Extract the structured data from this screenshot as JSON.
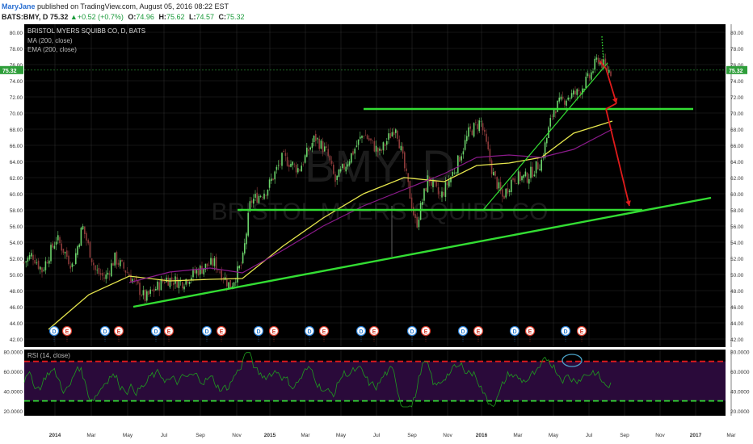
{
  "header": {
    "user": "MaryJane",
    "published_text": "published on TradingView.com, August 05, 2016 08:22 EST",
    "symbol": "BATS:BMY, D",
    "price": "75.32",
    "change": "+0.52 (+0.7%)",
    "ohlc": [
      {
        "k": "O:",
        "v": "74.96"
      },
      {
        "k": "H:",
        "v": "75.62"
      },
      {
        "k": "L:",
        "v": "74.57"
      },
      {
        "k": "C:",
        "v": "75.32"
      }
    ]
  },
  "legend": {
    "title": "BRISTOL MYERS SQUIBB CO, D, BATS",
    "ma": "MA (200, close)",
    "ema": "EMA (200, close)",
    "rsi": "RSI (14, close)"
  },
  "watermark": {
    "ticker": "BMY, D",
    "name": "BRISTOL MYERS SQUIBB CO"
  },
  "colors": {
    "up": "#6bd36b",
    "down": "#8b3a3a",
    "ma": "#8b1a8b",
    "ema": "#e6e64d",
    "trend": "#33dd33",
    "arrow": "#e01b1b",
    "rsi": "#1f9a1f",
    "rsi_band": "#2a0a3a",
    "grid": "#2a2a2a",
    "bg": "#000000",
    "circle": "#4aa3c8"
  },
  "chart_data": {
    "type": "candlestick",
    "title": "BRISTOL MYERS SQUIBB CO, D, BATS",
    "last_price": 75.32,
    "ylim": [
      41,
      81
    ],
    "y_ticks": [
      "42.00",
      "44.00",
      "46.00",
      "48.00",
      "50.00",
      "52.00",
      "54.00",
      "56.00",
      "58.00",
      "60.00",
      "62.00",
      "64.00",
      "66.00",
      "68.00",
      "70.00",
      "72.00",
      "74.00",
      "76.00",
      "78.00",
      "80.00"
    ],
    "x_ticks": [
      "2014",
      "Mar",
      "May",
      "Jul",
      "Sep",
      "Nov",
      "2015",
      "Mar",
      "May",
      "Jul",
      "Sep",
      "Nov",
      "2016",
      "Mar",
      "May",
      "Jul",
      "Sep",
      "Nov",
      "2017",
      "Mar"
    ],
    "price_path": [
      [
        0,
        51.5
      ],
      [
        10,
        52.5
      ],
      [
        22,
        50.5
      ],
      [
        40,
        54.5
      ],
      [
        60,
        51.0
      ],
      [
        72,
        56.0
      ],
      [
        88,
        50.5
      ],
      [
        100,
        49.5
      ],
      [
        112,
        52.0
      ],
      [
        130,
        50.0
      ],
      [
        150,
        47.0
      ],
      [
        160,
        48.0
      ],
      [
        175,
        49.5
      ],
      [
        195,
        49.0
      ],
      [
        215,
        50.5
      ],
      [
        235,
        51.5
      ],
      [
        255,
        48.5
      ],
      [
        270,
        51.5
      ],
      [
        280,
        59.0
      ],
      [
        300,
        60.5
      ],
      [
        320,
        64.5
      ],
      [
        340,
        63.0
      ],
      [
        360,
        67.0
      ],
      [
        375,
        65.0
      ],
      [
        385,
        61.5
      ],
      [
        400,
        64.0
      ],
      [
        420,
        67.5
      ],
      [
        440,
        65.0
      ],
      [
        460,
        68.5
      ],
      [
        475,
        61.0
      ],
      [
        485,
        56.0
      ],
      [
        500,
        62.0
      ],
      [
        515,
        59.5
      ],
      [
        535,
        63.5
      ],
      [
        550,
        67.5
      ],
      [
        565,
        69.0
      ],
      [
        580,
        62.5
      ],
      [
        592,
        59.5
      ],
      [
        605,
        62.0
      ],
      [
        622,
        62.0
      ],
      [
        640,
        64.0
      ],
      [
        655,
        70.5
      ],
      [
        672,
        72.0
      ],
      [
        685,
        72.5
      ],
      [
        700,
        74.5
      ],
      [
        710,
        76.8
      ],
      [
        720,
        75.5
      ],
      [
        728,
        75.0
      ]
    ],
    "ma_path": [
      [
        130,
        49.0
      ],
      [
        180,
        50.3
      ],
      [
        230,
        50.8
      ],
      [
        270,
        50.2
      ],
      [
        320,
        53.0
      ],
      [
        370,
        56.0
      ],
      [
        420,
        58.5
      ],
      [
        470,
        60.5
      ],
      [
        520,
        62.5
      ],
      [
        560,
        64.5
      ],
      [
        600,
        64.8
      ],
      [
        640,
        64.5
      ],
      [
        680,
        65.5
      ],
      [
        728,
        68.0
      ]
    ],
    "ema_path": [
      [
        30,
        43.2
      ],
      [
        80,
        47.5
      ],
      [
        130,
        49.8
      ],
      [
        180,
        49.2
      ],
      [
        230,
        49.4
      ],
      [
        270,
        49.5
      ],
      [
        320,
        53.5
      ],
      [
        370,
        57.0
      ],
      [
        420,
        60.0
      ],
      [
        470,
        62.0
      ],
      [
        520,
        61.5
      ],
      [
        560,
        63.5
      ],
      [
        600,
        63.8
      ],
      [
        640,
        64.5
      ],
      [
        680,
        67.5
      ],
      [
        728,
        69.0
      ]
    ],
    "trendlines": [
      {
        "x1": 165,
        "y1": 46.0,
        "x2": 880,
        "y2": 59.5
      },
      {
        "x1": 450,
        "y1": 70.5,
        "x2": 858,
        "y2": 70.5
      },
      {
        "x1": 294,
        "y1": 58.0,
        "x2": 795,
        "y2": 58.0
      },
      {
        "x1": 598,
        "y1": 58.0,
        "x2": 752,
        "y2": 76.2
      }
    ],
    "earnings_markers": [
      "D",
      "E",
      "D",
      "E",
      "D",
      "E",
      "D",
      "E",
      "D",
      "E",
      "D",
      "E",
      "D",
      "E",
      "D",
      "E",
      "D",
      "E",
      "D",
      "E",
      "D",
      "E"
    ],
    "rsi": {
      "label": "RSI (14, close)",
      "ylim": [
        15,
        82
      ],
      "levels": [
        70,
        30
      ],
      "y_ticks": [
        "20.0000",
        "40.0000",
        "60.0000",
        "80.0000"
      ],
      "current": 55
    }
  }
}
